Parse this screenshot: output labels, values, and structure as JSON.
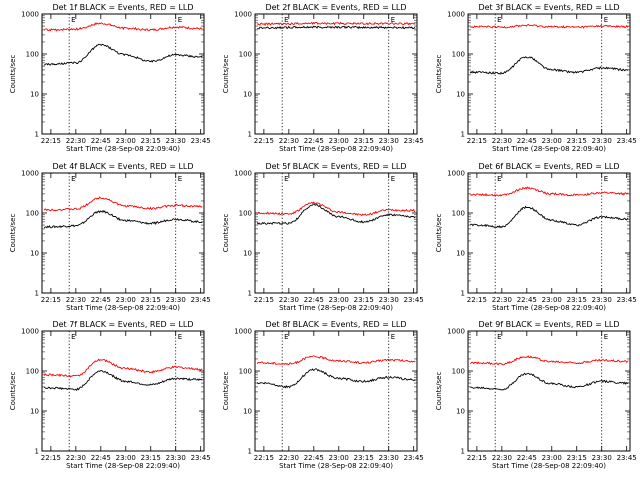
{
  "figure": {
    "ylabel": "Counts/sec",
    "xlabel": "Start Time (28-Sep-08 22:09:40)",
    "x_tick_labels": [
      "22:15",
      "22:30",
      "22:45",
      "23:00",
      "23:15",
      "23:30",
      "23:45"
    ],
    "y_tick_labels": [
      "1",
      "10",
      "100",
      "1000"
    ],
    "marker_labels": [
      "E",
      "E"
    ],
    "series_colors": {
      "events": "#000000",
      "lld": "#ff0000"
    }
  },
  "chart_data": [
    {
      "type": "line",
      "title": "Det 1f BLACK = Events, RED = LLD",
      "xlabel": "Start Time (28-Sep-08 22:09:40)",
      "ylabel": "Counts/sec",
      "y_scale": "log",
      "ylim": [
        1,
        1000
      ],
      "xlim": [
        "22:09:40",
        "23:47:00"
      ],
      "x": [
        "22:15",
        "22:30",
        "22:45",
        "23:00",
        "23:15",
        "23:30",
        "23:45"
      ],
      "series": [
        {
          "color": "#000000",
          "values": [
            55,
            60,
            170,
            95,
            65,
            95,
            85
          ]
        },
        {
          "color": "#ff0000",
          "values": [
            400,
            420,
            580,
            440,
            400,
            470,
            430
          ]
        }
      ],
      "vertical_markers": [
        "22:26",
        "23:30"
      ]
    },
    {
      "type": "line",
      "title": "Det 2f BLACK = Events, RED = LLD",
      "xlabel": "Start Time (28-Sep-08 22:09:40)",
      "ylabel": "Counts/sec",
      "y_scale": "log",
      "ylim": [
        1,
        1000
      ],
      "xlim": [
        "22:09:40",
        "23:47:00"
      ],
      "x": [
        "22:15",
        "22:30",
        "22:45",
        "23:00",
        "23:15",
        "23:30",
        "23:45"
      ],
      "series": [
        {
          "color": "#000000",
          "values": [
            450,
            460,
            470,
            470,
            460,
            460,
            455
          ]
        },
        {
          "color": "#ff0000",
          "values": [
            560,
            570,
            590,
            580,
            575,
            580,
            570
          ]
        }
      ],
      "vertical_markers": [
        "22:26",
        "23:30"
      ]
    },
    {
      "type": "line",
      "title": "Det 3f BLACK = Events, RED = LLD",
      "xlabel": "Start Time (28-Sep-08 22:09:40)",
      "ylabel": "Counts/sec",
      "y_scale": "log",
      "ylim": [
        1,
        1000
      ],
      "xlim": [
        "22:09:40",
        "23:47:00"
      ],
      "x": [
        "22:15",
        "22:30",
        "22:45",
        "23:00",
        "23:15",
        "23:30",
        "23:45"
      ],
      "series": [
        {
          "color": "#000000",
          "values": [
            35,
            33,
            85,
            40,
            35,
            45,
            40
          ]
        },
        {
          "color": "#ff0000",
          "values": [
            480,
            470,
            520,
            480,
            470,
            500,
            480
          ]
        }
      ],
      "vertical_markers": [
        "22:26",
        "23:30"
      ]
    },
    {
      "type": "line",
      "title": "Det 4f BLACK = Events, RED = LLD",
      "xlabel": "Start Time (28-Sep-08 22:09:40)",
      "ylabel": "Counts/sec",
      "y_scale": "log",
      "ylim": [
        1,
        1000
      ],
      "xlim": [
        "22:09:40",
        "23:47:00"
      ],
      "x": [
        "22:15",
        "22:30",
        "22:45",
        "23:00",
        "23:15",
        "23:30",
        "23:45"
      ],
      "series": [
        {
          "color": "#000000",
          "values": [
            45,
            48,
            110,
            65,
            55,
            70,
            60
          ]
        },
        {
          "color": "#ff0000",
          "values": [
            120,
            125,
            240,
            150,
            130,
            155,
            145
          ]
        }
      ],
      "vertical_markers": [
        "22:26",
        "23:30"
      ]
    },
    {
      "type": "line",
      "title": "Det 5f BLACK = Events, RED = LLD",
      "xlabel": "Start Time (28-Sep-08 22:09:40)",
      "ylabel": "Counts/sec",
      "y_scale": "log",
      "ylim": [
        1,
        1000
      ],
      "xlim": [
        "22:09:40",
        "23:47:00"
      ],
      "x": [
        "22:15",
        "22:30",
        "22:45",
        "23:00",
        "23:15",
        "23:30",
        "23:45"
      ],
      "series": [
        {
          "color": "#000000",
          "values": [
            55,
            55,
            160,
            80,
            60,
            90,
            80
          ]
        },
        {
          "color": "#ff0000",
          "values": [
            100,
            95,
            180,
            105,
            90,
            120,
            115
          ]
        }
      ],
      "vertical_markers": [
        "22:26",
        "23:30"
      ]
    },
    {
      "type": "line",
      "title": "Det 6f BLACK = Events, RED = LLD",
      "xlabel": "Start Time (28-Sep-08 22:09:40)",
      "ylabel": "Counts/sec",
      "y_scale": "log",
      "ylim": [
        1,
        1000
      ],
      "xlim": [
        "22:09:40",
        "23:47:00"
      ],
      "x": [
        "22:15",
        "22:30",
        "22:45",
        "23:00",
        "23:15",
        "23:30",
        "23:45"
      ],
      "series": [
        {
          "color": "#000000",
          "values": [
            50,
            45,
            140,
            65,
            50,
            80,
            70
          ]
        },
        {
          "color": "#ff0000",
          "values": [
            290,
            280,
            420,
            300,
            280,
            320,
            300
          ]
        }
      ],
      "vertical_markers": [
        "22:26",
        "23:30"
      ]
    },
    {
      "type": "line",
      "title": "Det 7f BLACK = Events, RED = LLD",
      "xlabel": "Start Time (28-Sep-08 22:09:40)",
      "ylabel": "Counts/sec",
      "y_scale": "log",
      "ylim": [
        1,
        1000
      ],
      "xlim": [
        "22:09:40",
        "23:47:00"
      ],
      "x": [
        "22:15",
        "22:30",
        "22:45",
        "23:00",
        "23:15",
        "23:30",
        "23:45"
      ],
      "series": [
        {
          "color": "#000000",
          "values": [
            38,
            35,
            100,
            55,
            45,
            65,
            60
          ]
        },
        {
          "color": "#ff0000",
          "values": [
            80,
            75,
            190,
            115,
            95,
            125,
            110
          ]
        }
      ],
      "vertical_markers": [
        "22:26",
        "23:30"
      ]
    },
    {
      "type": "line",
      "title": "Det 8f BLACK = Events, RED = LLD",
      "xlabel": "Start Time (28-Sep-08 22:09:40)",
      "ylabel": "Counts/sec",
      "y_scale": "log",
      "ylim": [
        1,
        1000
      ],
      "xlim": [
        "22:09:40",
        "23:47:00"
      ],
      "x": [
        "22:15",
        "22:30",
        "22:45",
        "23:00",
        "23:15",
        "23:30",
        "23:45"
      ],
      "series": [
        {
          "color": "#000000",
          "values": [
            50,
            40,
            110,
            65,
            55,
            70,
            60
          ]
        },
        {
          "color": "#ff0000",
          "values": [
            160,
            150,
            230,
            180,
            160,
            190,
            175
          ]
        }
      ],
      "vertical_markers": [
        "22:26",
        "23:30"
      ]
    },
    {
      "type": "line",
      "title": "Det 9f BLACK = Events, RED = LLD",
      "xlabel": "Start Time (28-Sep-08 22:09:40)",
      "ylabel": "Counts/sec",
      "y_scale": "log",
      "ylim": [
        1,
        1000
      ],
      "xlim": [
        "22:09:40",
        "23:47:00"
      ],
      "x": [
        "22:15",
        "22:30",
        "22:45",
        "23:00",
        "23:15",
        "23:30",
        "23:45"
      ],
      "series": [
        {
          "color": "#000000",
          "values": [
            38,
            35,
            85,
            48,
            40,
            55,
            50
          ]
        },
        {
          "color": "#ff0000",
          "values": [
            160,
            150,
            230,
            170,
            160,
            185,
            175
          ]
        }
      ],
      "vertical_markers": [
        "22:26",
        "23:30"
      ]
    }
  ]
}
